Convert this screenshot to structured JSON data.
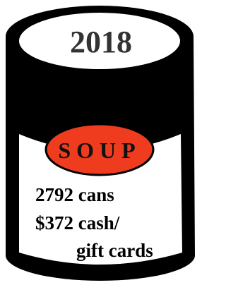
{
  "top_label": "2018",
  "label": "SOUP",
  "lines": [
    "2792 cans",
    "$372 cash/",
    "gift cards"
  ]
}
